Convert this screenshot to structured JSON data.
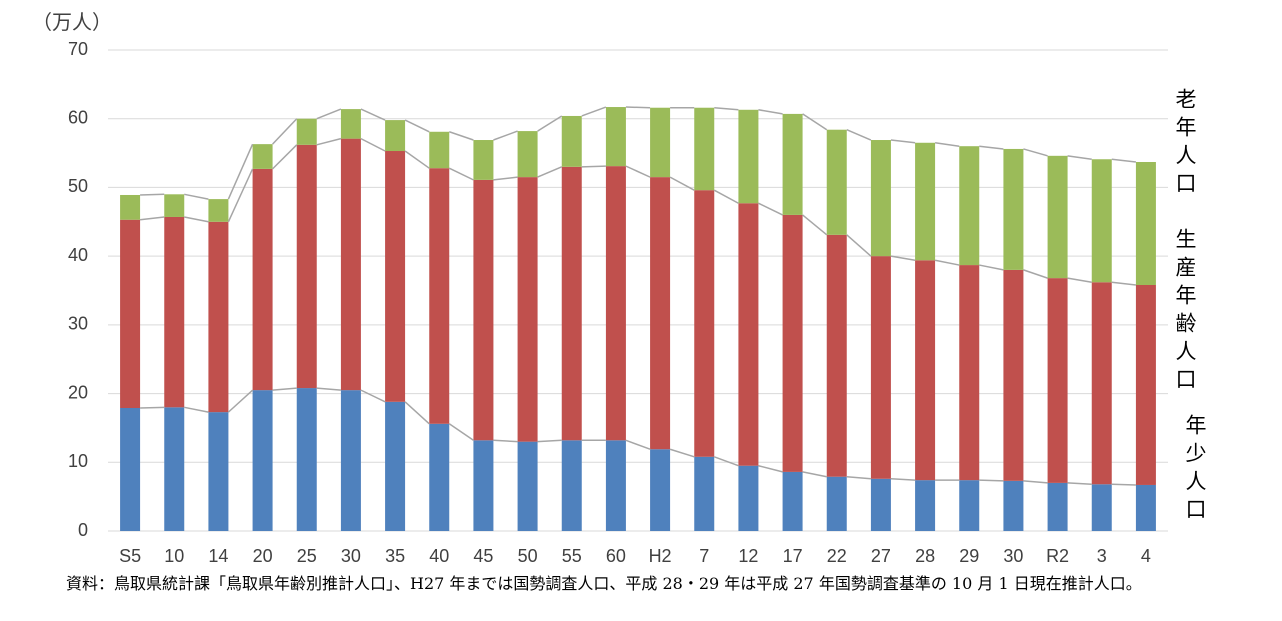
{
  "chart_data": {
    "type": "stacked-bar",
    "y_label": "（万人）",
    "categories": [
      "S5",
      "10",
      "14",
      "20",
      "25",
      "30",
      "35",
      "40",
      "45",
      "50",
      "55",
      "60",
      "H2",
      "7",
      "12",
      "17",
      "22",
      "27",
      "28",
      "29",
      "30",
      "R2",
      "3",
      "4"
    ],
    "series": [
      {
        "name": "年少人口",
        "color": "#4f81bd",
        "values": [
          17.9,
          18.0,
          17.3,
          20.5,
          20.8,
          20.5,
          18.8,
          15.6,
          13.2,
          13.0,
          13.2,
          13.2,
          11.9,
          10.8,
          9.5,
          8.6,
          7.9,
          7.6,
          7.4,
          7.4,
          7.3,
          7.0,
          6.8,
          6.7
        ]
      },
      {
        "name": "生産年齢人口",
        "color": "#c0504d",
        "values": [
          27.4,
          27.7,
          27.7,
          32.2,
          35.4,
          36.6,
          36.5,
          37.2,
          37.9,
          38.5,
          39.8,
          39.9,
          39.6,
          38.8,
          38.2,
          37.4,
          35.2,
          32.4,
          32.0,
          31.3,
          30.7,
          29.8,
          29.4,
          29.1
        ]
      },
      {
        "name": "老年人口",
        "color": "#9bbb59",
        "values": [
          3.6,
          3.3,
          3.3,
          3.6,
          3.8,
          4.3,
          4.5,
          5.3,
          5.8,
          6.7,
          7.4,
          8.6,
          10.1,
          12.0,
          13.6,
          14.7,
          15.3,
          16.9,
          17.1,
          17.3,
          17.6,
          17.8,
          17.9,
          17.9
        ]
      }
    ],
    "ylim": [
      0,
      70
    ],
    "yticks": [
      0,
      10,
      20,
      30,
      40,
      50,
      60,
      70
    ],
    "grid": true,
    "note": "資料：鳥取県統計課「鳥取県年齢別推計人口」、H27 年までは国勢調査人口、平成 28・29 年は平成 27 年国勢調査基準の 10 月 1 日現在推計人口。"
  }
}
